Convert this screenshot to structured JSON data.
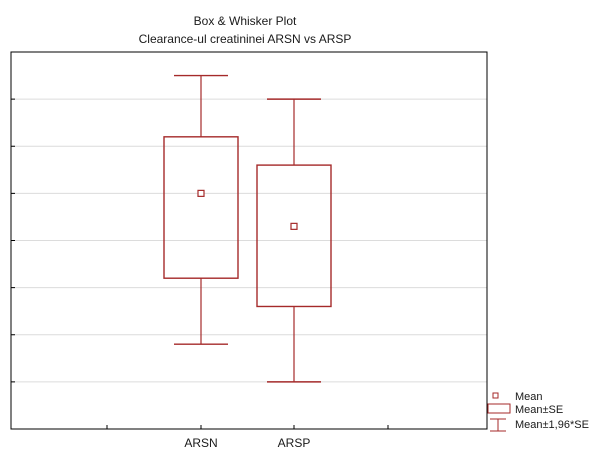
{
  "chart_data": {
    "type": "boxplot",
    "title": "Box & Whisker Plot",
    "subtitle": "Clearance-ul creatininei  ARSN vs ARSP",
    "categories": [
      "ARSN",
      "ARSP"
    ],
    "series": [
      {
        "category": "ARSN",
        "mean": 5.0,
        "se_low": 3.2,
        "se_high": 6.2,
        "ci_low": 1.8,
        "ci_high": 7.5
      },
      {
        "category": "ARSP",
        "mean": 4.3,
        "se_low": 2.6,
        "se_high": 5.6,
        "ci_low": 1.0,
        "ci_high": 7.0
      }
    ],
    "ylim": [
      0,
      8
    ],
    "grid": true,
    "legend": {
      "placement": "bottom-right",
      "entries": [
        {
          "symbol": "square-marker",
          "label": "Mean"
        },
        {
          "symbol": "box",
          "label": "Mean±SE"
        },
        {
          "symbol": "whisker",
          "label": "Mean±1,96*SE"
        }
      ]
    },
    "colors": {
      "box": "#a52a2a",
      "grid": "#dcdcdc",
      "axis": "#000000"
    }
  }
}
